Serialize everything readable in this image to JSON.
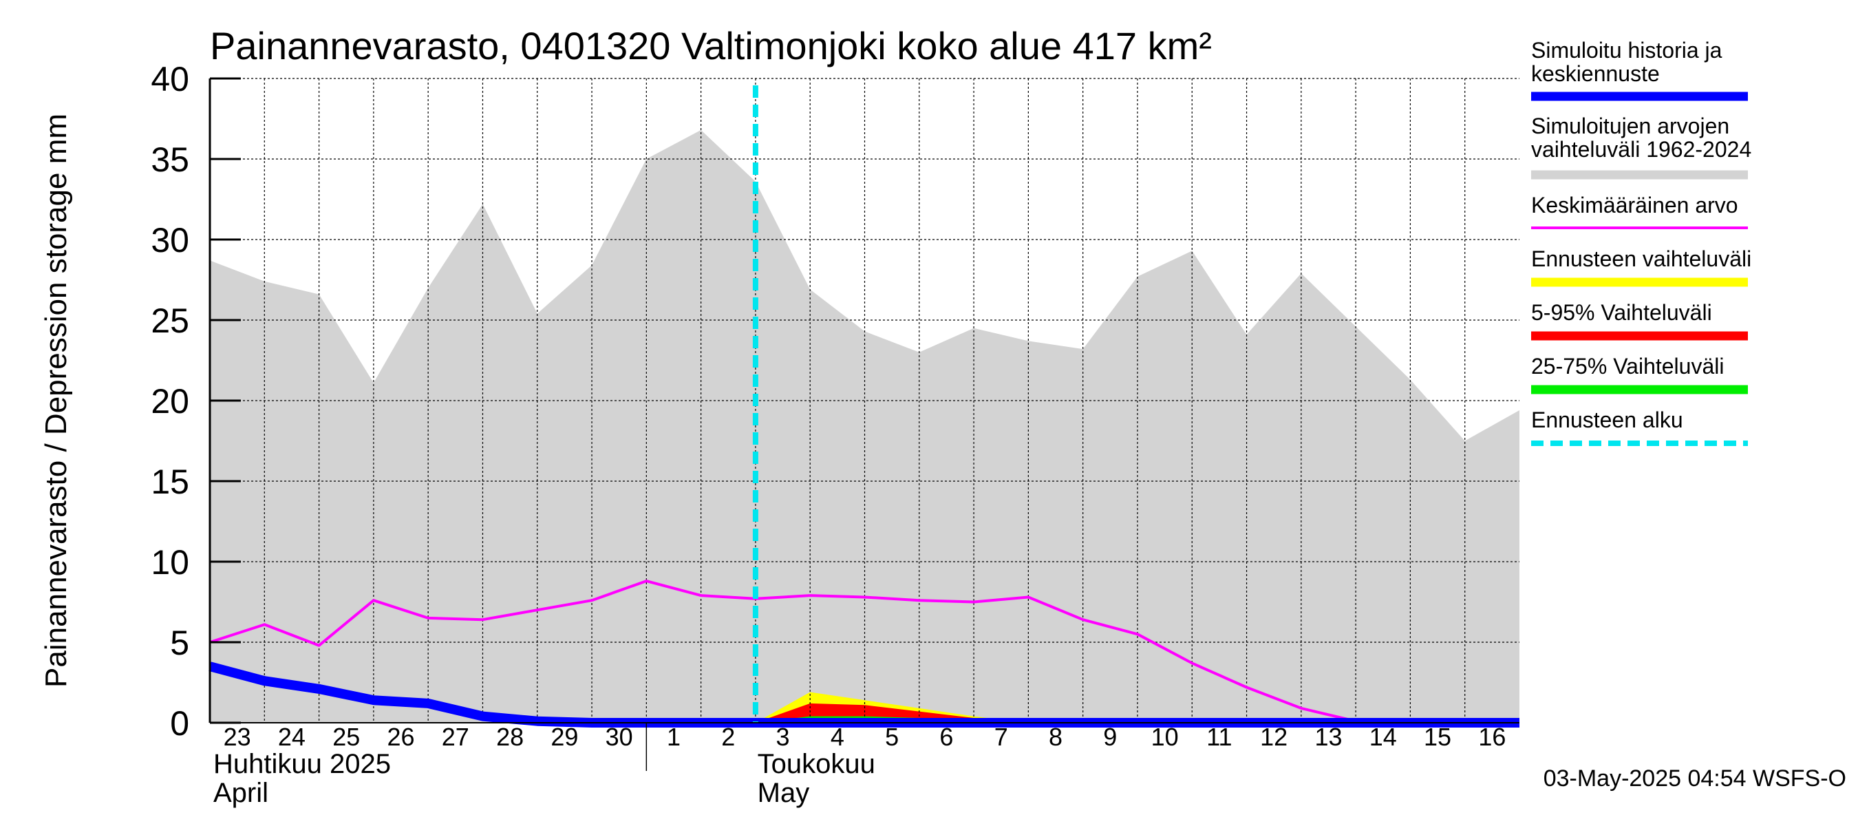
{
  "chart_data": {
    "type": "area",
    "title": "Painannevarasto, 0401320 Valtimonjoki koko alue 417 km²",
    "ylabel": "Painannevarasto / Depression storage    mm",
    "ylim": [
      0,
      40
    ],
    "yticks": [
      0,
      5,
      10,
      15,
      20,
      25,
      30,
      35,
      40
    ],
    "xlim": [
      0,
      24
    ],
    "x_tick_labels": [
      "23",
      "24",
      "25",
      "26",
      "27",
      "28",
      "29",
      "30",
      "1",
      "2",
      "3",
      "4",
      "5",
      "6",
      "7",
      "8",
      "9",
      "10",
      "11",
      "12",
      "13",
      "14",
      "15",
      "16"
    ],
    "month_labels": [
      {
        "line1": "Huhtikuu  2025",
        "line2": "April",
        "x": 0
      },
      {
        "line1": "Toukokuu",
        "line2": "May",
        "x": 9
      }
    ],
    "forecast_start_x": 10,
    "grid": true,
    "legend_placement": "right",
    "series": [
      {
        "name": "Simuloitujen arvojen vaihteluväli 1962-2024",
        "kind": "band",
        "color": "#d3d3d3",
        "x": [
          0,
          1,
          2,
          3,
          4,
          5,
          6,
          7,
          8,
          9,
          10,
          11,
          12,
          13,
          14,
          15,
          16,
          17,
          18,
          19,
          20,
          21,
          22,
          23,
          24
        ],
        "upper": [
          28.7,
          27.4,
          26.6,
          21.1,
          27.0,
          32.2,
          25.4,
          28.4,
          35.0,
          36.8,
          33.6,
          26.9,
          24.3,
          23.0,
          24.5,
          23.7,
          23.2,
          27.7,
          29.3,
          24.1,
          27.9,
          24.6,
          21.3,
          17.5,
          19.4
        ],
        "lower": [
          0,
          0,
          0,
          0,
          0,
          0,
          0,
          0,
          0,
          0,
          0,
          0,
          0,
          0,
          0,
          0,
          0,
          0,
          0,
          0,
          0,
          0,
          0,
          0,
          0
        ]
      },
      {
        "name": "Ennusteen vaihteluväli",
        "kind": "band",
        "color": "#ffff00",
        "x": [
          10,
          11,
          12,
          13,
          14,
          15
        ],
        "upper": [
          0,
          1.9,
          1.4,
          0.9,
          0.4,
          0
        ],
        "lower": [
          0,
          0,
          0,
          0,
          0,
          0
        ]
      },
      {
        "name": "5-95% Vaihteluväli",
        "kind": "band",
        "color": "#ff0000",
        "x": [
          10,
          11,
          12,
          13,
          14,
          15
        ],
        "upper": [
          0,
          1.2,
          1.1,
          0.7,
          0.3,
          0
        ],
        "lower": [
          0,
          0,
          0,
          0,
          0,
          0
        ]
      },
      {
        "name": "25-75% Vaihteluväli",
        "kind": "band",
        "color": "#00ee00",
        "x": [
          10,
          11,
          12,
          13,
          14,
          15
        ],
        "upper": [
          0,
          0.4,
          0.4,
          0.3,
          0.1,
          0
        ],
        "lower": [
          0,
          0,
          0,
          0,
          0,
          0
        ]
      },
      {
        "name": "Keskimääräinen arvo",
        "kind": "line",
        "color": "#ff00ff",
        "x": [
          0,
          1,
          2,
          3,
          4,
          5,
          6,
          7,
          8,
          9,
          10,
          11,
          12,
          13,
          14,
          15,
          16,
          17,
          18,
          19,
          20,
          21,
          22,
          23,
          24
        ],
        "y": [
          5.0,
          6.1,
          4.8,
          7.6,
          6.5,
          6.4,
          7.0,
          7.6,
          8.8,
          7.9,
          7.7,
          7.9,
          7.8,
          7.6,
          7.5,
          7.8,
          6.4,
          5.5,
          3.7,
          2.2,
          0.9,
          0.1,
          0,
          0,
          0
        ]
      },
      {
        "name": "Simuloitu historia ja keskiennuste",
        "kind": "line",
        "color": "#0000ff",
        "x": [
          0,
          1,
          2,
          3,
          4,
          5,
          6,
          7,
          8,
          9,
          10,
          11,
          12,
          13,
          14,
          15,
          16,
          17,
          18,
          19,
          20,
          21,
          22,
          23,
          24
        ],
        "y": [
          3.5,
          2.6,
          2.1,
          1.4,
          1.2,
          0.4,
          0.1,
          0,
          0,
          0,
          0,
          0,
          0,
          0,
          0,
          0,
          0,
          0,
          0,
          0,
          0,
          0,
          0,
          0,
          0
        ]
      },
      {
        "name": "Ennusteen alku",
        "kind": "vline",
        "color": "#00e5ee"
      }
    ],
    "legend": [
      {
        "label": "Simuloitu historia ja keskiennuste",
        "color": "#0000ff",
        "style": "thick"
      },
      {
        "label": "Simuloitujen arvojen vaihteluväli 1962-2024",
        "color": "#d3d3d3",
        "style": "thick"
      },
      {
        "label": "Keskimääräinen arvo",
        "color": "#ff00ff",
        "style": "thin"
      },
      {
        "label": "Ennusteen vaihteluväli",
        "color": "#ffff00",
        "style": "thick"
      },
      {
        "label": "5-95% Vaihteluväli",
        "color": "#ff0000",
        "style": "thick"
      },
      {
        "label": "25-75% Vaihteluväli",
        "color": "#00ee00",
        "style": "thick"
      },
      {
        "label": "Ennusteen alku",
        "color": "#00e5ee",
        "style": "dashed"
      }
    ],
    "footer": "03-May-2025 04:54 WSFS-O"
  }
}
